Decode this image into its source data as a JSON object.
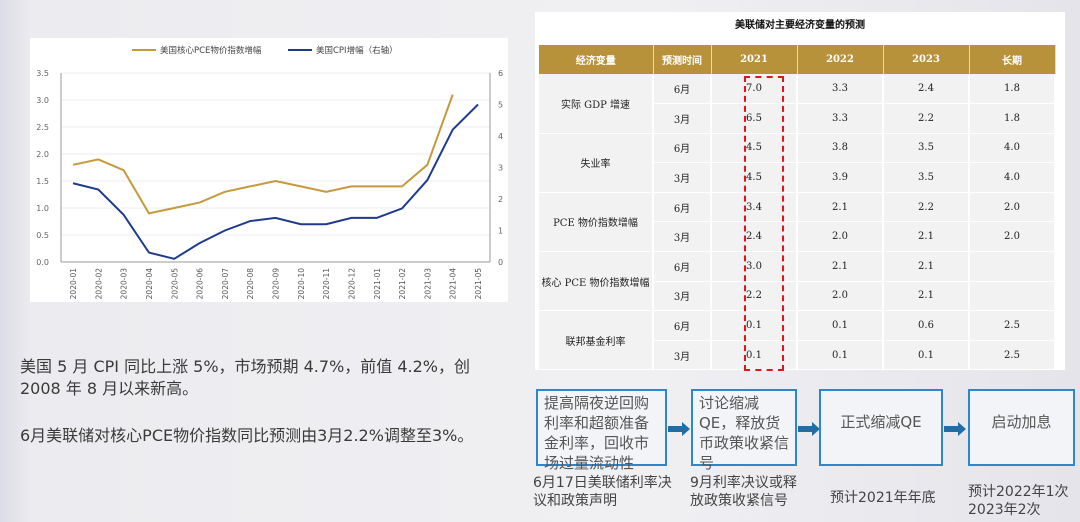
{
  "chart_data": {
    "type": "line",
    "categories": [
      "2020-01",
      "2020-02",
      "2020-03",
      "2020-04",
      "2020-05",
      "2020-06",
      "2020-07",
      "2020-08",
      "2020-09",
      "2020-10",
      "2020-11",
      "2020-12",
      "2021-01",
      "2021-02",
      "2021-03",
      "2021-04",
      "2021-05"
    ],
    "series": [
      {
        "name": "美国核心PCE物价指数增幅",
        "axis": "left",
        "color": "#c49a3c",
        "values": [
          1.8,
          1.9,
          1.7,
          0.9,
          1.0,
          1.1,
          1.3,
          1.4,
          1.5,
          1.4,
          1.3,
          1.4,
          1.4,
          1.4,
          1.8,
          3.1,
          null
        ]
      },
      {
        "name": "美国CPI增幅（右轴）",
        "axis": "right",
        "color": "#1f3b8c",
        "values": [
          2.5,
          2.3,
          1.5,
          0.3,
          0.1,
          0.6,
          1.0,
          1.3,
          1.4,
          1.2,
          1.2,
          1.4,
          1.4,
          1.7,
          2.6,
          4.2,
          5.0
        ]
      }
    ],
    "ylim": [
      0,
      3.5
    ],
    "yticks": [
      "0.0",
      "0.5",
      "1.0",
      "1.5",
      "2.0",
      "2.5",
      "3.0",
      "3.5"
    ],
    "y2lim": [
      0,
      6
    ],
    "y2ticks": [
      "0",
      "1",
      "2",
      "3",
      "4",
      "5",
      "6"
    ],
    "legend": "top",
    "grid": true
  },
  "text": {
    "para1": "美国 5 月 CPI 同比上涨 5%，市场预期 4.7%，前值 4.2%，创 2008 年 8 月以来新高。",
    "para2": "6月美联储对核心PCE物价指数同比预测由3月2.2%调整至3%。"
  },
  "table": {
    "title": "美联储对主要经济变量的预测",
    "headers": [
      "经济变量",
      "预测时间",
      "2021",
      "2022",
      "2023",
      "长期"
    ],
    "groups": [
      {
        "name": "实际 GDP 增速",
        "rows": [
          [
            "6月",
            "7.0",
            "3.3",
            "2.4",
            "1.8"
          ],
          [
            "3月",
            "6.5",
            "3.3",
            "2.2",
            "1.8"
          ]
        ]
      },
      {
        "name": "失业率",
        "rows": [
          [
            "6月",
            "4.5",
            "3.8",
            "3.5",
            "4.0"
          ],
          [
            "3月",
            "4.5",
            "3.9",
            "3.5",
            "4.0"
          ]
        ]
      },
      {
        "name": "PCE 物价指数增幅",
        "rows": [
          [
            "6月",
            "3.4",
            "2.1",
            "2.2",
            "2.0"
          ],
          [
            "3月",
            "2.4",
            "2.0",
            "2.1",
            "2.0"
          ]
        ]
      },
      {
        "name": "核心 PCE 物价指数增幅",
        "rows": [
          [
            "6月",
            "3.0",
            "2.1",
            "2.1",
            ""
          ],
          [
            "3月",
            "2.2",
            "2.0",
            "2.1",
            ""
          ]
        ]
      },
      {
        "name": "联邦基金利率",
        "rows": [
          [
            "6月",
            "0.1",
            "0.1",
            "0.6",
            "2.5"
          ],
          [
            "3月",
            "0.1",
            "0.1",
            "0.1",
            "2.5"
          ]
        ]
      }
    ],
    "highlight_color": "#e0141c"
  },
  "flow": {
    "steps": [
      {
        "box": "提高隔夜逆回购利率和超额准备金利率，回收市场过量流动性",
        "label": "6月17日美联储利率决议和政策声明"
      },
      {
        "box": "讨论缩减QE，释放货币政策收紧信号",
        "label": "9月利率决议或释放政策收紧信号"
      },
      {
        "box": "正式缩减QE",
        "label": "预计2021年年底"
      },
      {
        "box": "启动加息",
        "label": "预计2022年1次 2023年2次"
      }
    ],
    "box_color": "#2f86c8",
    "arrow_color": "#1f6ea8"
  }
}
